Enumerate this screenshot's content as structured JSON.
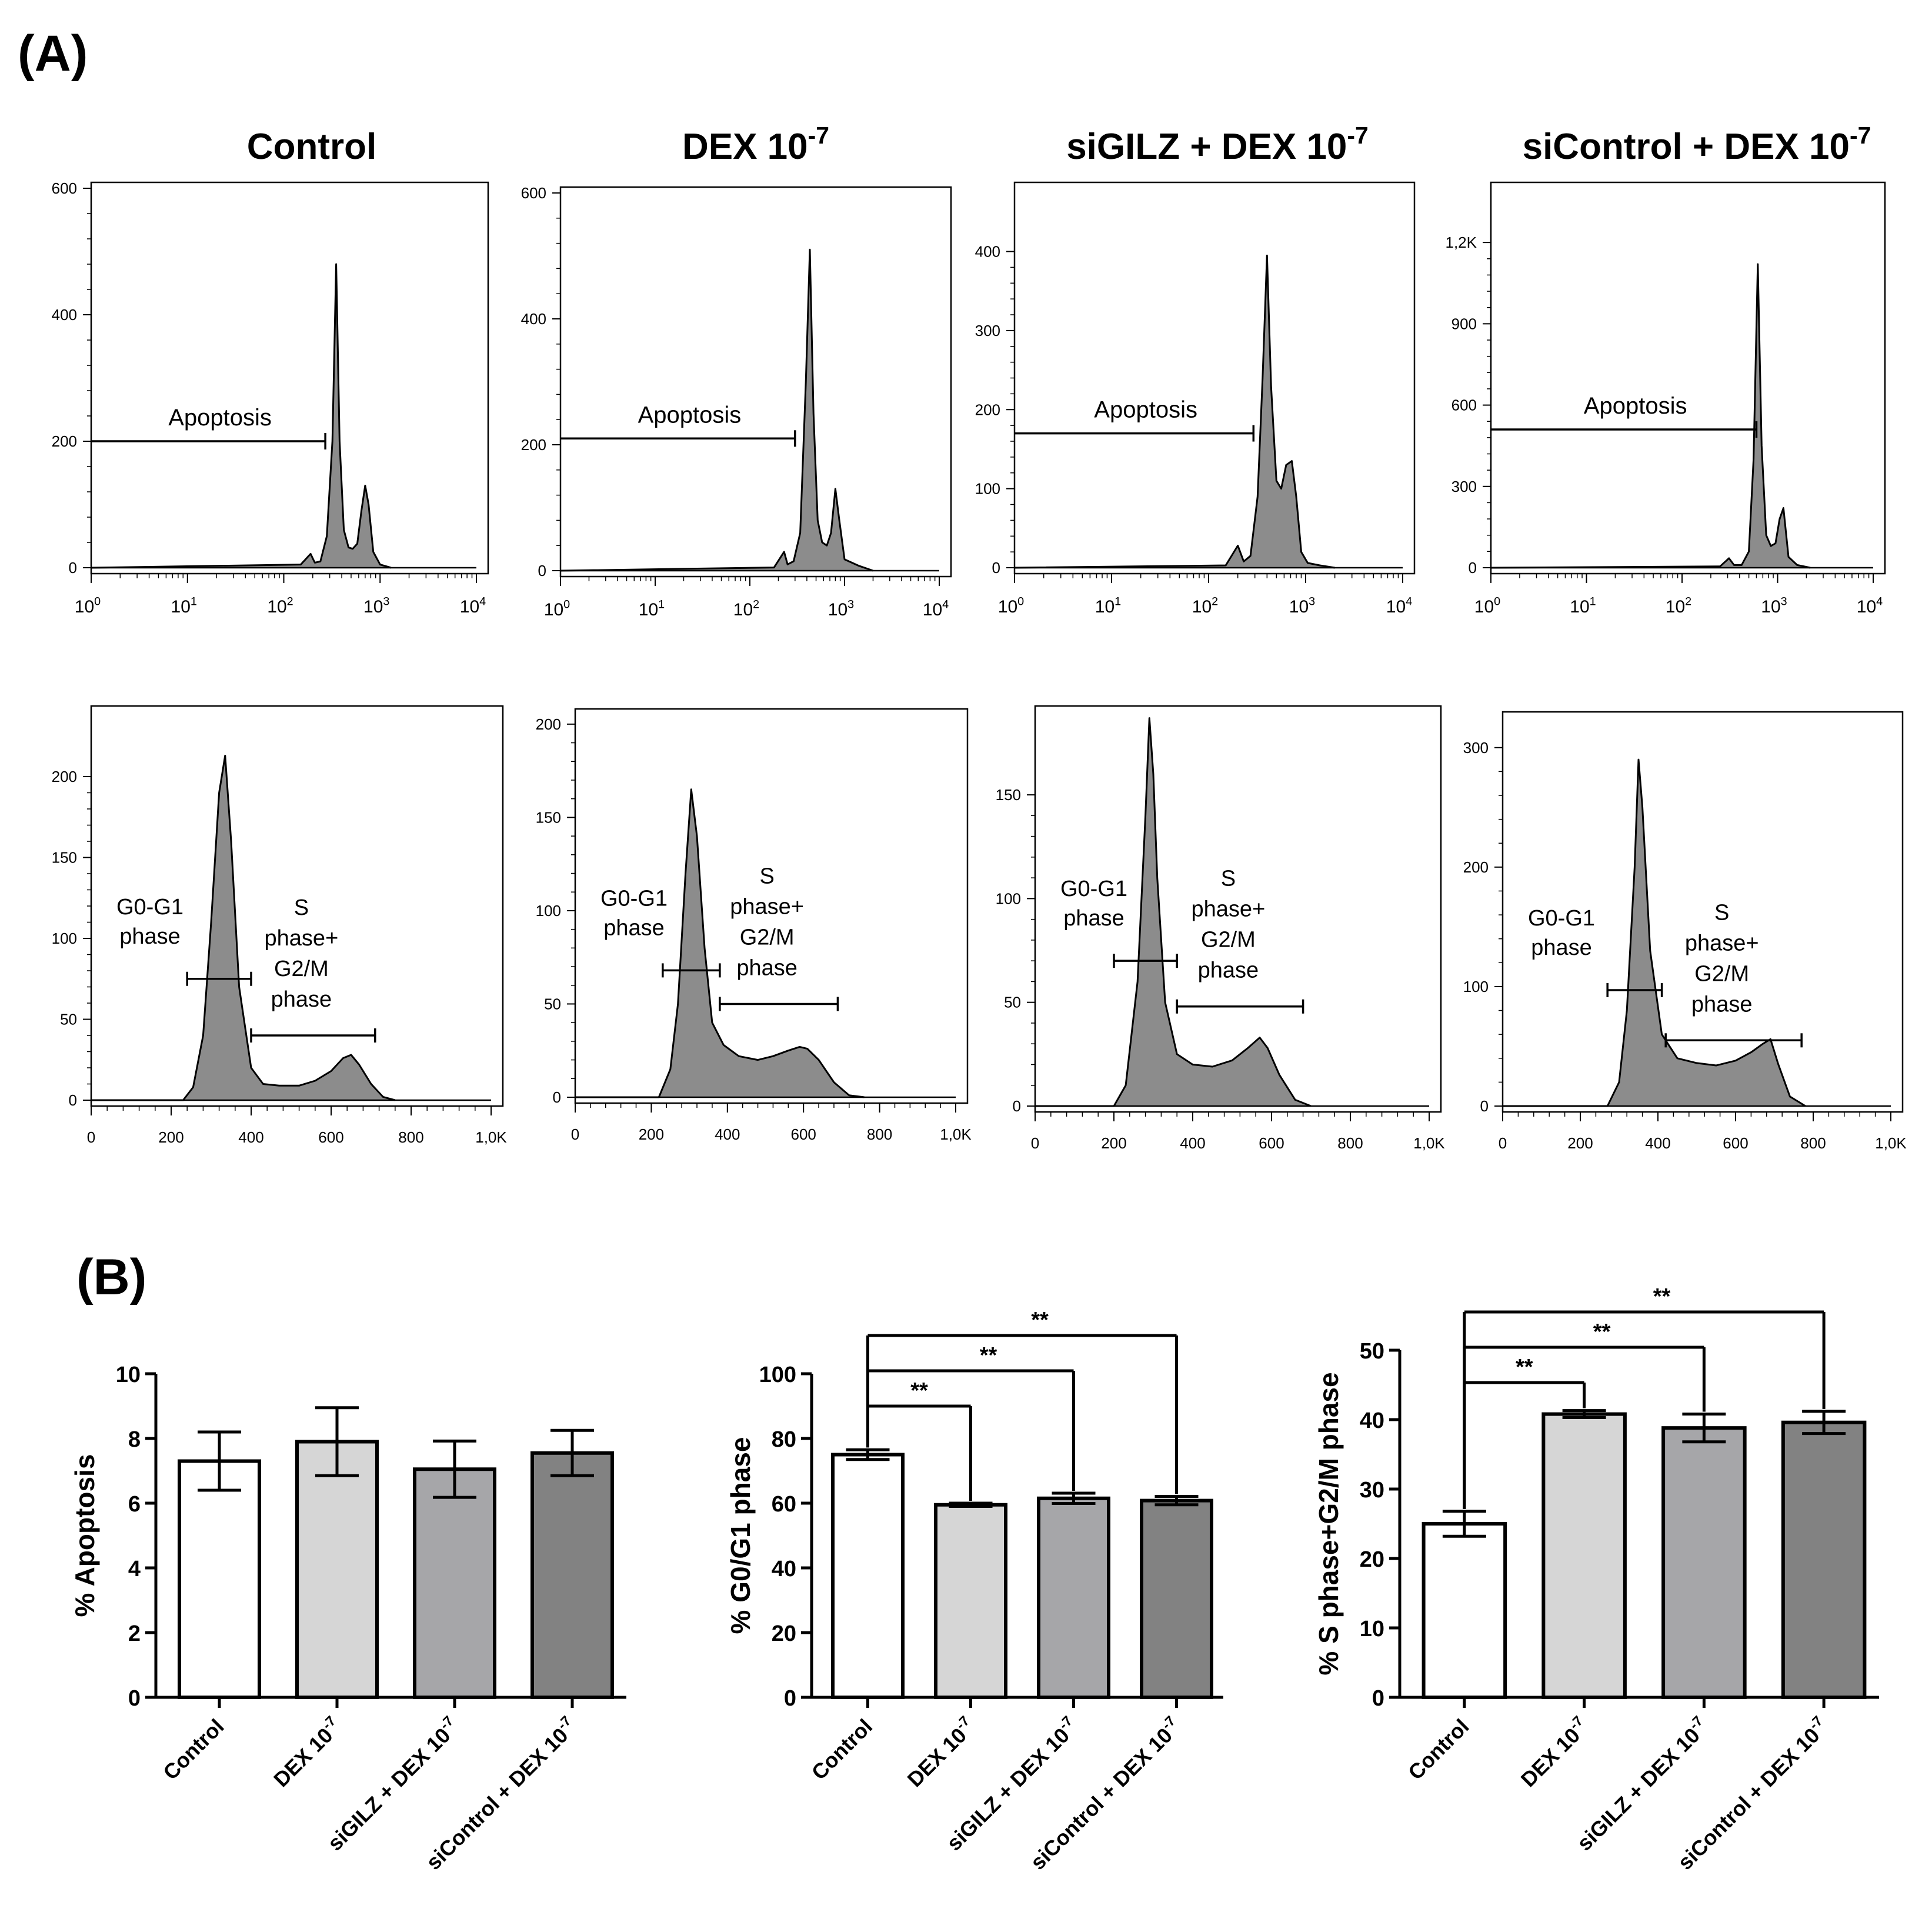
{
  "panel_a": {
    "label": "(A)",
    "titles": [
      {
        "base": "Control",
        "sup": ""
      },
      {
        "base": "DEX 10",
        "sup": "-7"
      },
      {
        "base": "siGILZ + DEX 10",
        "sup": "-7"
      },
      {
        "base": "siControl + DEX 10",
        "sup": "-7"
      }
    ],
    "log_x": {
      "base": "10",
      "exps": [
        "0",
        "1",
        "2",
        "3",
        "4"
      ]
    },
    "apoptosis_label": "Apoptosis",
    "apoptosis_y_ticks": [
      [
        "0",
        "200",
        "400",
        "600"
      ],
      [
        "0",
        "200",
        "400",
        "600"
      ],
      [
        "0",
        "100",
        "200",
        "300",
        "400"
      ],
      [
        "0",
        "300",
        "600",
        "900",
        "1,2K"
      ]
    ],
    "cycle_x_ticks": [
      "0",
      "200",
      "400",
      "600",
      "800",
      "1,0K"
    ],
    "cycle_y_ticks": [
      [
        "0",
        "50",
        "100",
        "150",
        "200"
      ],
      [
        "0",
        "50",
        "100",
        "150",
        "200"
      ],
      [
        "0",
        "50",
        "100",
        "150"
      ],
      [
        "0",
        "100",
        "200",
        "300"
      ]
    ],
    "g0g1_label": [
      "G0-G1",
      "phase"
    ],
    "s_label": [
      "S",
      "phase+",
      "G2/M",
      "phase"
    ]
  },
  "panel_b": {
    "label": "(B)",
    "sig_mark": "**",
    "colors": [
      "#ffffff",
      "#d6d6d6",
      "#a6a6a9",
      "#828282"
    ],
    "categories": [
      {
        "base": "Control",
        "sup": ""
      },
      {
        "base": "DEX 10",
        "sup": "-7"
      },
      {
        "base": "siGILZ + DEX 10",
        "sup": "-7"
      },
      {
        "base": "siControl + DEX 10",
        "sup": "-7"
      }
    ]
  },
  "chart_data": [
    {
      "type": "line",
      "title": "Control",
      "xscale": "log",
      "xlim": [
        1,
        10000
      ],
      "ylim": [
        0,
        600
      ],
      "gate": {
        "label": "Apoptosis",
        "x": [
          1,
          270
        ],
        "y": 200
      },
      "curve": {
        "x": [
          1,
          150,
          190,
          210,
          240,
          280,
          320,
          350,
          380,
          420,
          470,
          520,
          580,
          640,
          700,
          760,
          850,
          1000,
          1300
        ],
        "y": [
          0,
          5,
          22,
          8,
          10,
          50,
          200,
          480,
          200,
          60,
          32,
          30,
          38,
          90,
          130,
          100,
          25,
          5,
          0
        ]
      }
    },
    {
      "type": "line",
      "title": "DEX 10-7",
      "xscale": "log",
      "xlim": [
        1,
        10000
      ],
      "ylim": [
        0,
        600
      ],
      "gate": {
        "label": "Apoptosis",
        "x": [
          1,
          300
        ],
        "y": 210
      },
      "curve": {
        "x": [
          1,
          180,
          230,
          250,
          290,
          340,
          390,
          430,
          470,
          520,
          580,
          650,
          720,
          800,
          880,
          1000,
          1400,
          2000
        ],
        "y": [
          0,
          5,
          30,
          10,
          15,
          60,
          300,
          510,
          250,
          80,
          45,
          40,
          60,
          130,
          80,
          18,
          8,
          0
        ]
      }
    },
    {
      "type": "line",
      "title": "siGILZ + DEX 10-7",
      "xscale": "log",
      "xlim": [
        1,
        10000
      ],
      "ylim": [
        0,
        480
      ],
      "gate": {
        "label": "Apoptosis",
        "x": [
          1,
          290
        ],
        "y": 170
      },
      "curve": {
        "x": [
          1,
          150,
          200,
          230,
          270,
          320,
          360,
          400,
          440,
          500,
          560,
          630,
          720,
          800,
          900,
          1050,
          1400,
          2000
        ],
        "y": [
          0,
          3,
          28,
          8,
          15,
          90,
          240,
          395,
          230,
          110,
          100,
          130,
          135,
          90,
          20,
          6,
          3,
          0
        ]
      }
    },
    {
      "type": "line",
      "title": "siControl + DEX 10-7",
      "xscale": "log",
      "xlim": [
        1,
        10000
      ],
      "ylim": [
        0,
        1400
      ],
      "gate": {
        "label": "Apoptosis",
        "x": [
          1,
          600
        ],
        "y": 510
      },
      "curve": {
        "x": [
          1,
          250,
          310,
          350,
          420,
          500,
          560,
          620,
          680,
          760,
          850,
          950,
          1050,
          1150,
          1300,
          1600,
          2200
        ],
        "y": [
          0,
          5,
          35,
          10,
          10,
          60,
          400,
          1120,
          450,
          120,
          80,
          90,
          180,
          220,
          40,
          10,
          0
        ]
      }
    },
    {
      "type": "line",
      "title": "Control",
      "xlim": [
        0,
        1000
      ],
      "ylim": [
        0,
        240
      ],
      "gates": [
        {
          "label": "G0-G1 phase",
          "x": [
            240,
            400
          ],
          "y": 75
        },
        {
          "label": "S phase+ G2/M phase",
          "x": [
            400,
            710
          ],
          "y": 40
        }
      ],
      "curve": {
        "x": [
          0,
          230,
          255,
          280,
          300,
          320,
          335,
          350,
          370,
          400,
          430,
          470,
          520,
          560,
          600,
          630,
          650,
          670,
          700,
          730,
          760
        ],
        "y": [
          0,
          0,
          8,
          40,
          110,
          190,
          213,
          160,
          70,
          20,
          10,
          9,
          9,
          12,
          18,
          26,
          28,
          22,
          10,
          2,
          0
        ]
      }
    },
    {
      "type": "line",
      "title": "DEX 10-7",
      "xlim": [
        0,
        1000
      ],
      "ylim": [
        0,
        205
      ],
      "gates": [
        {
          "label": "G0-G1 phase",
          "x": [
            230,
            380
          ],
          "y": 68
        },
        {
          "label": "S phase+ G2/M phase",
          "x": [
            380,
            690
          ],
          "y": 50
        }
      ],
      "curve": {
        "x": [
          0,
          220,
          250,
          270,
          290,
          305,
          320,
          340,
          360,
          390,
          430,
          480,
          520,
          560,
          590,
          610,
          640,
          680,
          720,
          760
        ],
        "y": [
          0,
          0,
          15,
          50,
          120,
          165,
          140,
          80,
          40,
          28,
          22,
          20,
          22,
          25,
          27,
          26,
          20,
          8,
          1,
          0
        ]
      }
    },
    {
      "type": "line",
      "title": "siGILZ + DEX 10-7",
      "xlim": [
        0,
        1000
      ],
      "ylim": [
        0,
        190
      ],
      "gates": [
        {
          "label": "G0-G1 phase",
          "x": [
            200,
            360
          ],
          "y": 70
        },
        {
          "label": "S phase+ G2/M phase",
          "x": [
            360,
            680
          ],
          "y": 48
        }
      ],
      "curve": {
        "x": [
          0,
          200,
          230,
          260,
          280,
          290,
          300,
          310,
          330,
          360,
          400,
          450,
          500,
          540,
          570,
          590,
          620,
          660,
          700
        ],
        "y": [
          0,
          0,
          10,
          60,
          140,
          187,
          160,
          110,
          50,
          25,
          20,
          19,
          22,
          28,
          33,
          28,
          15,
          3,
          0
        ]
      }
    },
    {
      "type": "line",
      "title": "siControl + DEX 10-7",
      "xlim": [
        0,
        1000
      ],
      "ylim": [
        0,
        325
      ],
      "gates": [
        {
          "label": "G0-G1 phase",
          "x": [
            270,
            410
          ],
          "y": 97
        },
        {
          "label": "S phase+ G2/M phase",
          "x": [
            420,
            770
          ],
          "y": 55
        }
      ],
      "curve": {
        "x": [
          0,
          270,
          300,
          320,
          340,
          350,
          360,
          380,
          410,
          450,
          500,
          550,
          600,
          640,
          670,
          690,
          710,
          740,
          780
        ],
        "y": [
          0,
          0,
          20,
          80,
          200,
          290,
          250,
          130,
          60,
          40,
          36,
          34,
          38,
          45,
          52,
          56,
          35,
          8,
          0
        ]
      }
    },
    {
      "type": "bar",
      "categories": [
        "Control",
        "DEX 10-7",
        "siGILZ + DEX 10-7",
        "siControl + DEX 10-7"
      ],
      "values": [
        7.3,
        7.9,
        7.05,
        7.55
      ],
      "errors": [
        0.9,
        1.05,
        0.87,
        0.7
      ],
      "ylabel": "% Apoptosis",
      "ylim": [
        0,
        10
      ],
      "yticks": [
        "0",
        "2",
        "4",
        "6",
        "8",
        "10"
      ],
      "significance": []
    },
    {
      "type": "bar",
      "categories": [
        "Control",
        "DEX 10-7",
        "siGILZ + DEX 10-7",
        "siControl + DEX 10-7"
      ],
      "values": [
        75,
        59.5,
        61.5,
        60.8
      ],
      "errors": [
        1.5,
        0.5,
        1.6,
        1.3
      ],
      "ylabel": "% G0/G1 phase",
      "ylim": [
        0,
        100
      ],
      "yticks": [
        "0",
        "20",
        "40",
        "60",
        "80",
        "100"
      ],
      "significance": [
        {
          "from": 0,
          "to": 1,
          "label": "**"
        },
        {
          "from": 0,
          "to": 2,
          "label": "**"
        },
        {
          "from": 0,
          "to": 3,
          "label": "**"
        }
      ]
    },
    {
      "type": "bar",
      "categories": [
        "Control",
        "DEX 10-7",
        "siGILZ + DEX 10-7",
        "siControl + DEX 10-7"
      ],
      "values": [
        25,
        40.8,
        38.8,
        39.6
      ],
      "errors": [
        1.8,
        0.5,
        2.0,
        1.6
      ],
      "ylabel": "% S phase+G2/M phase",
      "ylim": [
        0,
        50
      ],
      "yticks": [
        "0",
        "10",
        "20",
        "30",
        "40",
        "50"
      ],
      "significance": [
        {
          "from": 0,
          "to": 1,
          "label": "**"
        },
        {
          "from": 0,
          "to": 2,
          "label": "**"
        },
        {
          "from": 0,
          "to": 3,
          "label": "**"
        }
      ]
    }
  ]
}
